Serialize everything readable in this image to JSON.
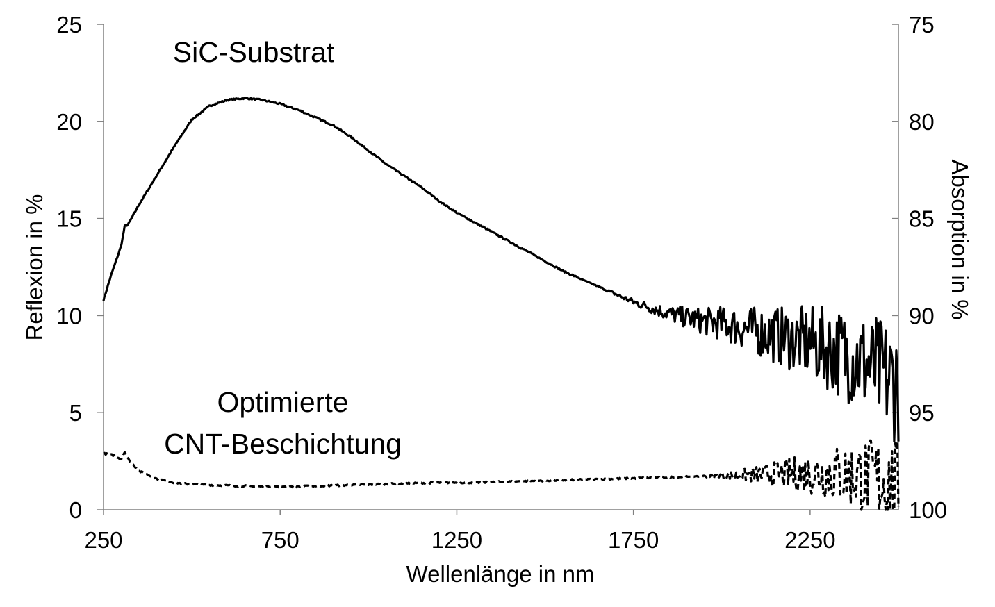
{
  "chart_data": {
    "type": "line",
    "xlabel": "Wellenlänge in nm",
    "ylabel": "Reflexion in %",
    "y2label": "Absorption in %",
    "xlim": [
      250,
      2500
    ],
    "ylim": [
      0,
      25
    ],
    "y2lim": [
      100,
      75
    ],
    "x_ticks": [
      "250",
      "750",
      "1250",
      "1750",
      "2250"
    ],
    "x_tick_values": [
      250,
      750,
      1250,
      1750,
      2250
    ],
    "y_ticks": [
      "0",
      "5",
      "10",
      "15",
      "20",
      "25"
    ],
    "y_tick_values": [
      0,
      5,
      10,
      15,
      20,
      25
    ],
    "y2_ticks": [
      "100",
      "95",
      "90",
      "85",
      "80",
      "75"
    ],
    "grid": false,
    "annotations": [
      {
        "text": "SiC-Substrat",
        "series": "SiC-Substrat"
      },
      {
        "text": "Optimierte",
        "series": "Optimierte CNT-Beschichtung"
      },
      {
        "text": "CNT-Beschichtung",
        "series": "Optimierte CNT-Beschichtung"
      }
    ],
    "series": [
      {
        "name": "SiC-Substrat",
        "style": "solid",
        "noise_from": 1600,
        "points": [
          [
            250,
            10.8
          ],
          [
            270,
            12.0
          ],
          [
            300,
            13.6
          ],
          [
            310,
            14.6
          ],
          [
            320,
            14.7
          ],
          [
            350,
            15.7
          ],
          [
            400,
            17.2
          ],
          [
            450,
            18.7
          ],
          [
            500,
            20.1
          ],
          [
            550,
            20.8
          ],
          [
            600,
            21.1
          ],
          [
            650,
            21.2
          ],
          [
            700,
            21.1
          ],
          [
            750,
            20.9
          ],
          [
            800,
            20.6
          ],
          [
            850,
            20.2
          ],
          [
            900,
            19.8
          ],
          [
            950,
            19.2
          ],
          [
            1000,
            18.5
          ],
          [
            1050,
            17.8
          ],
          [
            1100,
            17.2
          ],
          [
            1150,
            16.6
          ],
          [
            1200,
            15.9
          ],
          [
            1250,
            15.3
          ],
          [
            1300,
            14.8
          ],
          [
            1350,
            14.3
          ],
          [
            1400,
            13.8
          ],
          [
            1450,
            13.3
          ],
          [
            1500,
            12.8
          ],
          [
            1550,
            12.3
          ],
          [
            1600,
            11.9
          ],
          [
            1650,
            11.5
          ],
          [
            1700,
            11.1
          ],
          [
            1750,
            10.7
          ],
          [
            1800,
            10.4
          ],
          [
            1850,
            10.1
          ],
          [
            1900,
            9.9
          ],
          [
            1950,
            9.7
          ],
          [
            2000,
            9.6
          ],
          [
            2050,
            9.4
          ],
          [
            2100,
            9.2
          ],
          [
            2150,
            9.0
          ],
          [
            2200,
            8.8
          ],
          [
            2250,
            8.6
          ],
          [
            2300,
            8.3
          ],
          [
            2350,
            8.0
          ],
          [
            2400,
            7.6
          ],
          [
            2450,
            7.0
          ],
          [
            2500,
            6.5
          ]
        ]
      },
      {
        "name": "Optimierte CNT-Beschichtung",
        "style": "dashed",
        "noise_from": 1900,
        "points": [
          [
            250,
            2.9
          ],
          [
            280,
            2.8
          ],
          [
            300,
            2.6
          ],
          [
            310,
            3.0
          ],
          [
            320,
            2.6
          ],
          [
            350,
            2.0
          ],
          [
            400,
            1.6
          ],
          [
            450,
            1.4
          ],
          [
            500,
            1.3
          ],
          [
            600,
            1.25
          ],
          [
            700,
            1.2
          ],
          [
            800,
            1.2
          ],
          [
            900,
            1.25
          ],
          [
            1000,
            1.3
          ],
          [
            1100,
            1.35
          ],
          [
            1200,
            1.4
          ],
          [
            1300,
            1.4
          ],
          [
            1400,
            1.45
          ],
          [
            1500,
            1.5
          ],
          [
            1600,
            1.55
          ],
          [
            1700,
            1.6
          ],
          [
            1800,
            1.65
          ],
          [
            1900,
            1.7
          ],
          [
            2000,
            1.75
          ],
          [
            2100,
            1.8
          ],
          [
            2200,
            1.85
          ],
          [
            2300,
            1.9
          ],
          [
            2350,
            1.8
          ],
          [
            2400,
            1.7
          ],
          [
            2450,
            1.6
          ],
          [
            2500,
            1.0
          ]
        ]
      }
    ]
  }
}
